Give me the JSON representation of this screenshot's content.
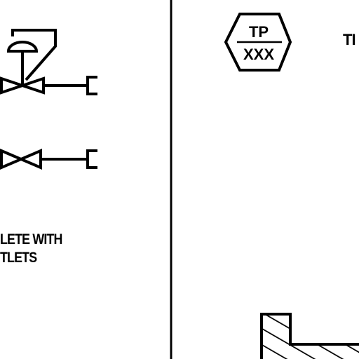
{
  "legend": {
    "line1": "LETE WITH",
    "line2": "TLETS"
  },
  "tag": {
    "top": "TP",
    "bottom": "XXX"
  },
  "right_label": "TI",
  "colors": {
    "ink": "#000000",
    "background": "#ffffff"
  },
  "icons": [
    "control-valve-icon",
    "hand-valve-icon",
    "pipe-cap-icon",
    "hexagon-tag-icon",
    "hatched-base-icon"
  ]
}
